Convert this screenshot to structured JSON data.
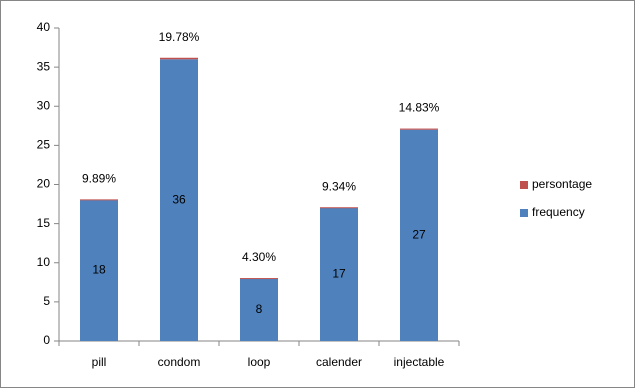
{
  "chart_data": {
    "type": "bar",
    "stacked": true,
    "categories": [
      "pill",
      "condom",
      "loop",
      "calender",
      "injectable"
    ],
    "series": [
      {
        "name": "frequency",
        "color": "#4f81bd",
        "values": [
          18,
          36,
          8,
          17,
          27
        ]
      },
      {
        "name": "persontage",
        "color": "#c0504d",
        "values": [
          0.0989,
          0.1978,
          0.043,
          0.0934,
          0.1483
        ],
        "value_labels": [
          "9.89%",
          "19.78%",
          "4.30%",
          "9.34%",
          "14.83%"
        ]
      }
    ],
    "ylim": [
      0,
      40
    ],
    "yticks": [
      0,
      5,
      10,
      15,
      20,
      25,
      30,
      35,
      40
    ],
    "grid": false,
    "legend": "right"
  }
}
